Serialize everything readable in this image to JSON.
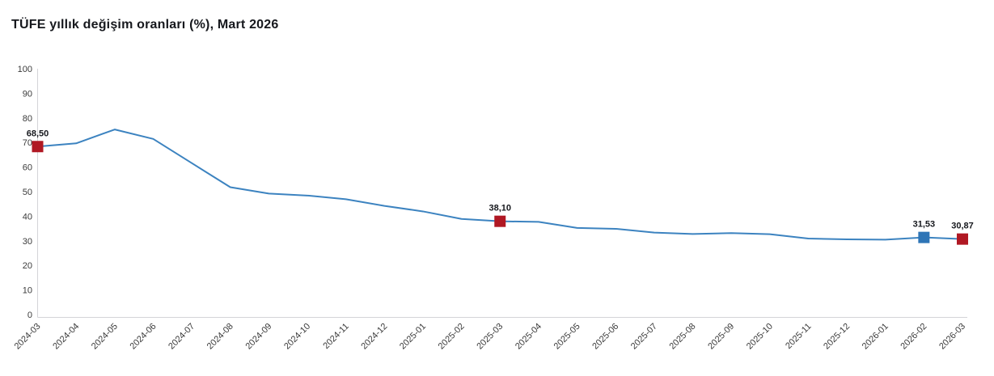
{
  "title": "TÜFE yıllık değişim oranları (%), Mart 2026",
  "chart_data": {
    "type": "line",
    "title": "TÜFE yıllık değişim oranları (%), Mart 2026",
    "categories": [
      "2024-03",
      "2024-04",
      "2024-05",
      "2024-06",
      "2024-07",
      "2024-08",
      "2024-09",
      "2024-10",
      "2024-11",
      "2024-12",
      "2025-01",
      "2025-02",
      "2025-03",
      "2025-04",
      "2025-05",
      "2025-06",
      "2025-07",
      "2025-08",
      "2025-09",
      "2025-10",
      "2025-11",
      "2025-12",
      "2026-01",
      "2026-02",
      "2026-03"
    ],
    "values": [
      68.5,
      69.8,
      75.45,
      71.6,
      61.78,
      51.97,
      49.38,
      48.58,
      47.09,
      44.38,
      42.12,
      39.05,
      38.1,
      37.86,
      35.41,
      35.05,
      33.52,
      32.95,
      33.29,
      32.87,
      31.07,
      30.75,
      30.65,
      31.53,
      30.87
    ],
    "ylim": [
      0,
      100
    ],
    "ytick_step": 10,
    "ytick_labels": [
      "0",
      "10",
      "20",
      "30",
      "40",
      "50",
      "60",
      "70",
      "80",
      "90",
      "100"
    ],
    "xlabel": "",
    "ylabel": "",
    "grid": false,
    "legend": false,
    "line_color": "#3c83c0",
    "axis_color": "#d4d4d8",
    "tick_label_color": "#3a3a3a",
    "annotation_label_color": "#16181d",
    "annotated_points": [
      {
        "category": "2024-03",
        "label": "68,50",
        "value": 68.5,
        "marker_color": "#b01823"
      },
      {
        "category": "2025-03",
        "label": "38,10",
        "value": 38.1,
        "marker_color": "#b01823"
      },
      {
        "category": "2026-02",
        "label": "31,53",
        "value": 31.53,
        "marker_color": "#2e75b6"
      },
      {
        "category": "2026-03",
        "label": "30,87",
        "value": 30.87,
        "marker_color": "#b01823"
      }
    ]
  }
}
